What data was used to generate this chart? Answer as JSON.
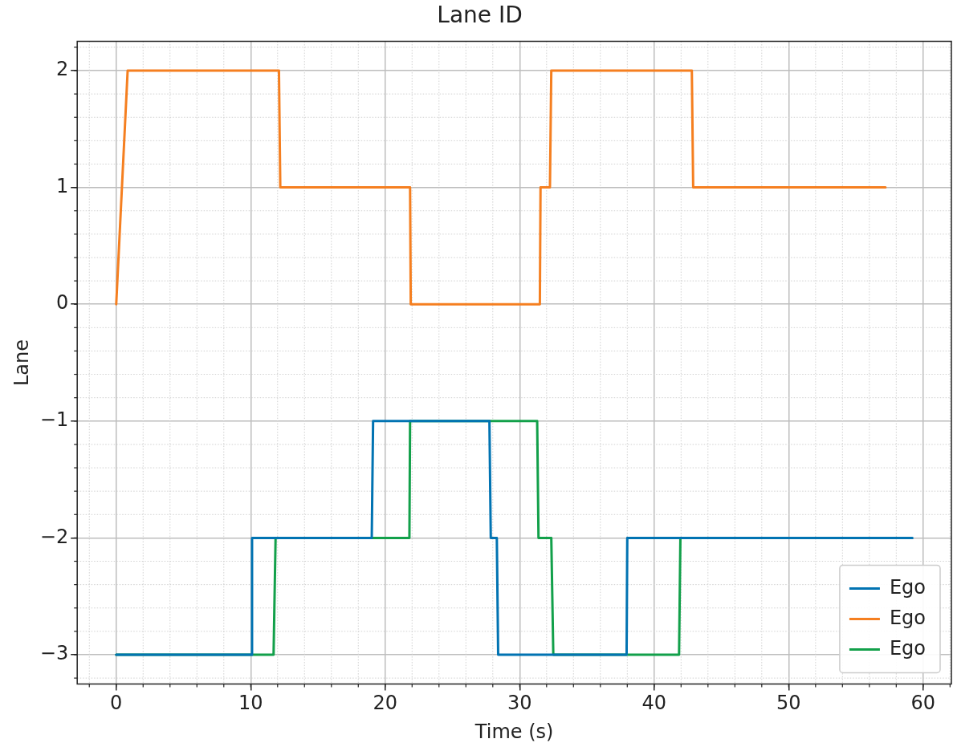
{
  "chart_data": {
    "type": "line",
    "title": "Lane ID",
    "xlabel": "Time (s)",
    "ylabel": "Lane",
    "xlim": [
      -2.9,
      62.1
    ],
    "xticks": [
      0,
      10,
      20,
      30,
      40,
      50,
      60
    ],
    "ylim": [
      -3.25,
      2.25
    ],
    "yticks": [
      {
        "value": -3,
        "label": "−3"
      },
      {
        "value": -2,
        "label": "−2"
      },
      {
        "value": -1,
        "label": "−1"
      },
      0,
      1,
      2
    ],
    "grid": true,
    "legend": "bottom right",
    "marker": "none",
    "line_style": "solid",
    "series": [
      {
        "name": "Ego",
        "color": "#0173b2",
        "x": [
          0,
          10.08,
          10.1,
          19.0,
          19.1,
          27.75,
          27.85,
          28.3,
          28.4,
          37.95,
          38.0,
          59.2
        ],
        "values": [
          -3,
          -3,
          -2,
          -2,
          -1,
          -1,
          -2,
          -2,
          -3,
          -3,
          -2,
          -2
        ]
      },
      {
        "name": "Ego",
        "color": "#f57f20",
        "x": [
          0,
          0.85,
          12.1,
          12.2,
          21.85,
          21.9,
          31.5,
          31.55,
          32.25,
          32.35,
          42.8,
          42.9,
          57.2
        ],
        "values": [
          0,
          2,
          2,
          1,
          1,
          0,
          0,
          1,
          1,
          2,
          2,
          1,
          1
        ]
      },
      {
        "name": "Ego",
        "color": "#12a04a",
        "x": [
          0,
          11.7,
          11.85,
          21.8,
          21.85,
          31.3,
          31.4,
          32.35,
          32.5,
          41.85,
          41.95,
          57.8
        ],
        "values": [
          -3,
          -3,
          -2,
          -2,
          -1,
          -1,
          -2,
          -2,
          -3,
          -3,
          -2,
          -2
        ]
      }
    ]
  }
}
